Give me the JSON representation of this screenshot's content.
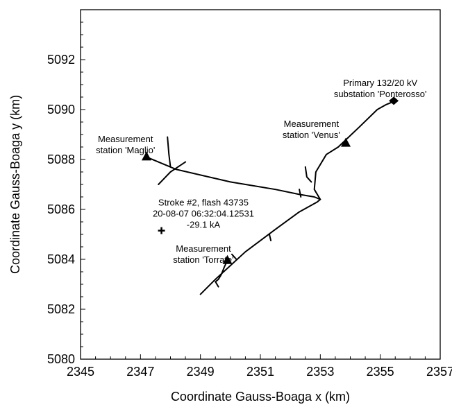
{
  "chart_data": {
    "type": "line",
    "xlabel": "Coordinate Gauss-Boaga x (km)",
    "ylabel": "Coordinate Gauss-Boaga y (km)",
    "xlim": [
      2345,
      2357
    ],
    "ylim": [
      5080,
      5094
    ],
    "xticks": [
      2345,
      2347,
      2349,
      2351,
      2353,
      2355,
      2357
    ],
    "yticks": [
      5080,
      5082,
      5084,
      5086,
      5088,
      5090,
      5092
    ],
    "grid": false,
    "legend": "none",
    "line_color": "#000000",
    "series": [
      {
        "x": [
          2347.2,
          2348.2,
          2350.0,
          2351.5,
          2352.3,
          2352.8,
          2353.0
        ],
        "y": [
          5088.1,
          5087.6,
          5087.1,
          5086.8,
          5086.6,
          5086.5,
          5086.4
        ]
      },
      {
        "x": [
          2349.0,
          2349.5,
          2350.5,
          2351.5,
          2352.3,
          2352.9,
          2353.0
        ],
        "y": [
          5082.6,
          5083.2,
          5084.3,
          5085.2,
          5085.9,
          5086.3,
          5086.4
        ]
      },
      {
        "x": [
          2353.0,
          2352.8,
          2352.85,
          2353.2,
          2353.6,
          2354.3,
          2354.9,
          2355.2,
          2355.5
        ],
        "y": [
          5086.4,
          5086.8,
          5087.5,
          5088.2,
          5088.5,
          5089.3,
          5090.0,
          5090.2,
          5090.35
        ]
      },
      {
        "x": [
          2349.9,
          2349.8,
          2349.7,
          2349.6,
          2349.5,
          2349.6
        ],
        "y": [
          5083.95,
          5083.7,
          5083.4,
          5083.2,
          5083.1,
          5082.9
        ]
      },
      {
        "x": [
          2347.9,
          2347.95,
          2348.0
        ],
        "y": [
          5088.9,
          5088.2,
          5087.7
        ]
      },
      {
        "x": [
          2348.5,
          2348.0,
          2347.6
        ],
        "y": [
          5087.9,
          5087.5,
          5087.0
        ]
      },
      {
        "x": [
          2352.3,
          2352.35
        ],
        "y": [
          5086.8,
          5086.5
        ]
      },
      {
        "x": [
          2351.3,
          2351.35
        ],
        "y": [
          5085.0,
          5084.75
        ]
      },
      {
        "x": [
          2352.5,
          2352.55,
          2352.7
        ],
        "y": [
          5087.7,
          5087.3,
          5087.1
        ]
      },
      {
        "x": [
          2350.05,
          2350.2
        ],
        "y": [
          5084.2,
          5084.0
        ]
      }
    ],
    "markers": [
      {
        "shape": "triangle",
        "x": 2347.2,
        "y": 5088.1
      },
      {
        "shape": "triangle",
        "x": 2353.85,
        "y": 5088.65
      },
      {
        "shape": "triangle",
        "x": 2349.9,
        "y": 5083.95
      },
      {
        "shape": "diamond",
        "x": 2355.45,
        "y": 5090.35
      },
      {
        "shape": "plus",
        "x": 2347.7,
        "y": 5085.15
      }
    ],
    "annotations": [
      {
        "lines": [
          "Measurement",
          "station 'Maglio'"
        ],
        "x": 2346.5,
        "y": 5088.7
      },
      {
        "lines": [
          "Measurement",
          "station 'Venus'"
        ],
        "x": 2352.7,
        "y": 5089.3
      },
      {
        "lines": [
          "Primary 132/20 kV",
          "substation 'Ponterosso'"
        ],
        "x": 2355.0,
        "y": 5090.95
      },
      {
        "lines": [
          "Stroke #2, flash 43735",
          "20-08-07 06:32:04.12531",
          "-29.1 kA"
        ],
        "x": 2349.1,
        "y": 5086.15
      },
      {
        "lines": [
          "Measurement",
          "station 'Torrate'"
        ],
        "x": 2349.1,
        "y": 5084.3
      }
    ]
  }
}
